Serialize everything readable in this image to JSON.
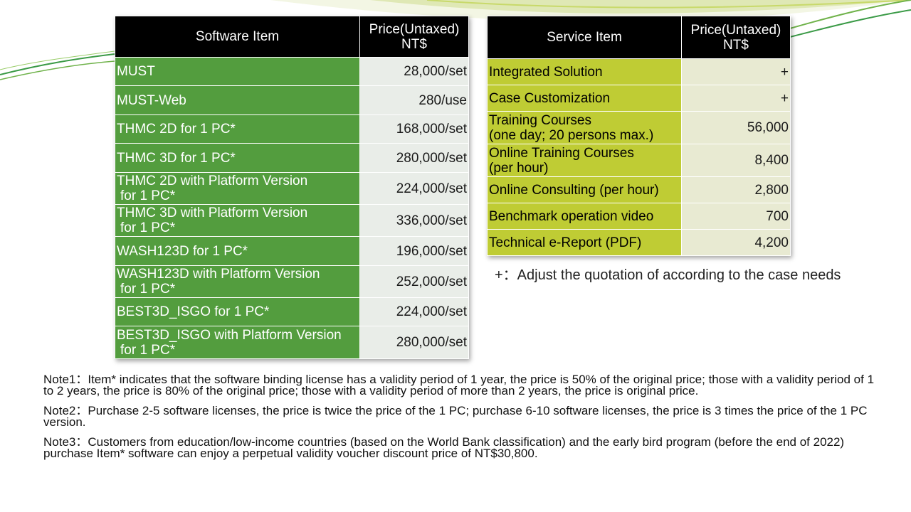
{
  "software": {
    "header": {
      "item": "Software Item",
      "price_line1": "Price(Untaxed)",
      "price_line2": "NT$"
    },
    "rows": [
      {
        "name1": "MUST",
        "name2": "",
        "price": "28,000/set"
      },
      {
        "name1": "MUST-Web",
        "name2": "",
        "price": "280/use"
      },
      {
        "name1": "THMC 2D for 1 PC*",
        "name2": "",
        "price": "168,000/set"
      },
      {
        "name1": "THMC 3D for 1 PC*",
        "name2": "",
        "price": "280,000/set"
      },
      {
        "name1": "THMC 2D with Platform Version",
        "name2": "for 1 PC*",
        "price": "224,000/set"
      },
      {
        "name1": "THMC 3D with Platform Version",
        "name2": "for 1 PC*",
        "price": "336,000/set"
      },
      {
        "name1": "WASH123D for 1 PC*",
        "name2": "",
        "price": "196,000/set"
      },
      {
        "name1": "WASH123D with Platform Version",
        "name2": "for 1 PC*",
        "price": "252,000/set"
      },
      {
        "name1": "BEST3D_ISGO for 1 PC*",
        "name2": "",
        "price": "224,000/set"
      },
      {
        "name1": "BEST3D_ISGO with Platform Version",
        "name2": "for 1 PC*",
        "price": "280,000/set"
      }
    ]
  },
  "service": {
    "header": {
      "item": "Service Item",
      "price_line1": "Price(Untaxed)",
      "price_line2": "NT$"
    },
    "rows": [
      {
        "name1": "Integrated Solution",
        "name2": "",
        "price": "+"
      },
      {
        "name1": "Case Customization",
        "name2": "",
        "price": "+"
      },
      {
        "name1": "Training Courses",
        "name2": "(one day; 20 persons max.)",
        "price": "56,000"
      },
      {
        "name1": "Online Training Courses",
        "name2": "(per hour)",
        "price": "8,400"
      },
      {
        "name1": "Online Consulting (per hour)",
        "name2": "",
        "price": "2,800"
      },
      {
        "name1": "Benchmark operation video",
        "name2": "",
        "price": "700"
      },
      {
        "name1": "Technical e-Report (PDF)",
        "name2": "",
        "price": "4,200"
      }
    ],
    "footnote": "+：Adjust the quotation of according to the case needs"
  },
  "notes": [
    "Note1：Item* indicates that the software binding license has a validity period of 1 year, the price is 50% of the original price; those with a validity period of 1 to 2 years, the price is 80% of the original price; those with a validity period of more than 2 years, the price is original price.",
    "Note2：Purchase 2-5 software licenses, the price is twice the price of the 1 PC; purchase 6-10 software licenses, the price is 3 times the price of the 1 PC version.",
    "Note3：Customers from education/low-income countries (based on the World Bank classification) and the early bird program (before the end of 2022) purchase Item* software can enjoy a perpetual validity voucher discount price of NT$30,800."
  ],
  "colors": {
    "header_bg": "#000000",
    "software_name_bg": "#539d3e",
    "service_name_bg": "#bfcc34",
    "price_bg": "#e9ede8"
  }
}
